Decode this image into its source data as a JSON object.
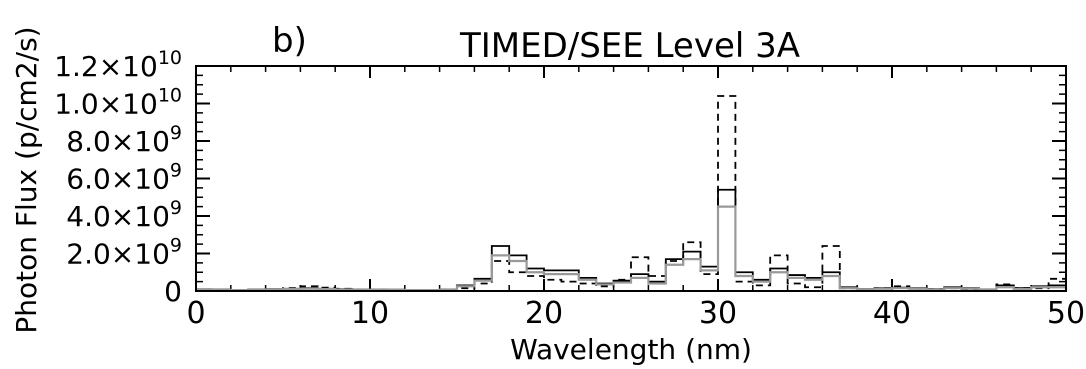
{
  "chart_data": {
    "type": "line",
    "title": "TIMED/SEE Level 3A",
    "panel_label": "b)",
    "xlabel": "Wavelength (nm)",
    "ylabel": "Photon Flux (p/cm2/s)",
    "xlim": [
      0,
      50
    ],
    "ylim": [
      0,
      12000000000
    ],
    "x_ticks": [
      0,
      10,
      20,
      30,
      40,
      50
    ],
    "x_tick_labels": [
      "0",
      "10",
      "20",
      "30",
      "40",
      "50"
    ],
    "y_ticks": [
      0,
      2000000000,
      4000000000,
      6000000000,
      8000000000,
      10000000000,
      12000000000
    ],
    "y_tick_labels": [
      {
        "mant": "0",
        "exp": ""
      },
      {
        "mant": "2.0×10",
        "exp": "9"
      },
      {
        "mant": "4.0×10",
        "exp": "9"
      },
      {
        "mant": "6.0×10",
        "exp": "9"
      },
      {
        "mant": "8.0×10",
        "exp": "9"
      },
      {
        "mant": "1.0×10",
        "exp": "10"
      },
      {
        "mant": "1.2×10",
        "exp": "10"
      }
    ],
    "bin_edges": [
      0,
      1,
      2,
      3,
      4,
      5,
      6,
      7,
      8,
      9,
      10,
      11,
      12,
      13,
      14,
      15,
      16,
      17,
      18,
      19,
      20,
      21,
      22,
      23,
      24,
      25,
      26,
      27,
      28,
      29,
      30,
      31,
      32,
      33,
      34,
      35,
      36,
      37,
      38,
      39,
      40,
      41,
      42,
      43,
      44,
      45,
      46,
      47,
      48,
      49,
      50
    ],
    "series": [
      {
        "style": "dashed",
        "color": "#000000",
        "values": [
          50000000.0,
          60000000.0,
          50000000.0,
          60000000.0,
          80000000.0,
          150000000.0,
          250000000.0,
          180000000.0,
          120000000.0,
          80000000.0,
          80000000.0,
          60000000.0,
          50000000.0,
          50000000.0,
          80000000.0,
          150000000.0,
          400000000.0,
          1600000000.0,
          1000000000.0,
          800000000.0,
          600000000.0,
          500000000.0,
          400000000.0,
          250000000.0,
          600000000.0,
          1800000000.0,
          800000000.0,
          1600000000.0,
          2600000000.0,
          900000000.0,
          10400000000.0,
          500000000.0,
          300000000.0,
          1900000000.0,
          400000000.0,
          200000000.0,
          2400000000.0,
          150000000.0,
          80000000.0,
          150000000.0,
          250000000.0,
          120000000.0,
          100000000.0,
          150000000.0,
          80000000.0,
          60000000.0,
          350000000.0,
          150000000.0,
          150000000.0,
          650000000.0
        ]
      },
      {
        "style": "solid",
        "color": "#000000",
        "values": [
          80000000.0,
          80000000.0,
          60000000.0,
          80000000.0,
          100000000.0,
          120000000.0,
          150000000.0,
          120000000.0,
          100000000.0,
          80000000.0,
          80000000.0,
          70000000.0,
          50000000.0,
          60000000.0,
          80000000.0,
          300000000.0,
          650000000.0,
          2400000000.0,
          1900000000.0,
          1200000000.0,
          1100000000.0,
          1100000000.0,
          700000000.0,
          400000000.0,
          550000000.0,
          900000000.0,
          500000000.0,
          1700000000.0,
          2100000000.0,
          1300000000.0,
          5400000000.0,
          1000000000.0,
          600000000.0,
          1200000000.0,
          850000000.0,
          700000000.0,
          1000000000.0,
          200000000.0,
          100000000.0,
          150000000.0,
          180000000.0,
          150000000.0,
          100000000.0,
          200000000.0,
          150000000.0,
          80000000.0,
          300000000.0,
          150000000.0,
          250000000.0,
          300000000.0
        ]
      },
      {
        "style": "solid",
        "color": "#999999",
        "values": [
          50000000.0,
          60000000.0,
          50000000.0,
          60000000.0,
          80000000.0,
          100000000.0,
          120000000.0,
          100000000.0,
          80000000.0,
          70000000.0,
          70000000.0,
          60000000.0,
          50000000.0,
          50000000.0,
          70000000.0,
          250000000.0,
          550000000.0,
          1900000000.0,
          1600000000.0,
          1000000000.0,
          900000000.0,
          900000000.0,
          600000000.0,
          350000000.0,
          450000000.0,
          700000000.0,
          400000000.0,
          1400000000.0,
          1700000000.0,
          1100000000.0,
          4500000000.0,
          800000000.0,
          500000000.0,
          1000000000.0,
          700000000.0,
          600000000.0,
          800000000.0,
          150000000.0,
          80000000.0,
          120000000.0,
          150000000.0,
          120000000.0,
          80000000.0,
          150000000.0,
          120000000.0,
          60000000.0,
          200000000.0,
          100000000.0,
          200000000.0,
          200000000.0
        ]
      }
    ],
    "grid": false,
    "legend": "none"
  }
}
